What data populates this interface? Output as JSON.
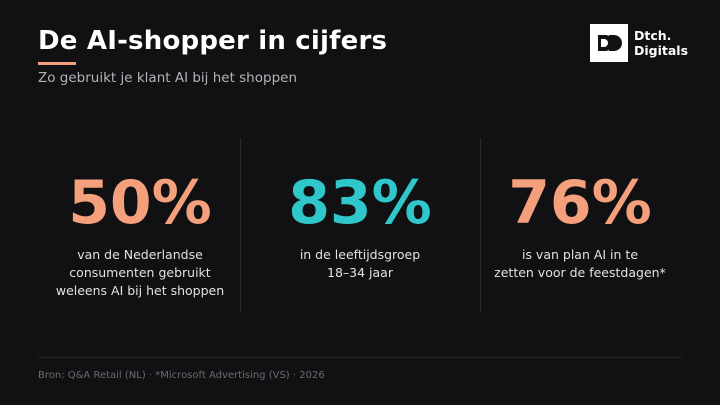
{
  "header": {
    "title": "De AI-shopper in cijfers",
    "subtitle": "Zo gebruikt je klant AI bij het shoppen"
  },
  "logo": {
    "lines": [
      "Dtch.",
      "Digitals"
    ]
  },
  "stats": [
    {
      "value": "50%",
      "color": "#f5a07c",
      "lines": [
        "van de Nederlandse",
        "consumenten gebruikt",
        "weleens AI bij het shoppen"
      ]
    },
    {
      "value": "83%",
      "color": "#2fc7c9",
      "lines": [
        "in de leeftijdsgroep",
        "18–34 jaar"
      ]
    },
    {
      "value": "76%",
      "color": "#f5a07c",
      "lines": [
        "is van plan AI in te",
        "zetten voor de feestdagen*"
      ]
    }
  ],
  "footer": {
    "source": "Bron: Q&A Retail (NL) · *Microsoft Advertising (VS) · 2026"
  }
}
